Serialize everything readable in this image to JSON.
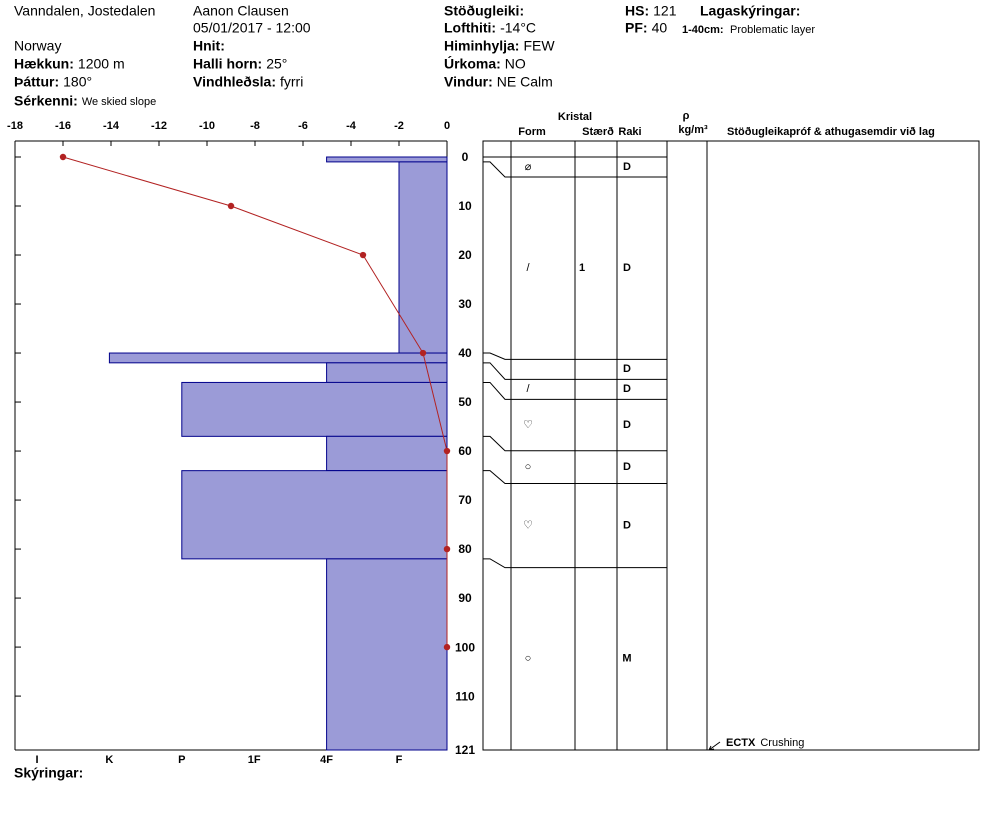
{
  "header": {
    "location": "Vanndalen, Jostedalen",
    "country": "Norway",
    "observer": "Aanon Clausen",
    "datetime": "05/01/2017 - 12:00",
    "fields": [
      {
        "label": "Hækkun:",
        "value": "1200 m"
      },
      {
        "label": "Þáttur:",
        "value": "180°"
      },
      {
        "label": "Sérkenni:",
        "value": "We skied slope"
      },
      {
        "label": "Hnit:"
      },
      {
        "label": "Halli horn:",
        "value": "25°"
      },
      {
        "label": "Vindhleðsla:",
        "value": "fyrri"
      },
      {
        "label": "Stöðugleiki:"
      },
      {
        "label": "Lofthiti:",
        "value": "-14°C"
      },
      {
        "label": "Himinhylja:",
        "value": "FEW"
      },
      {
        "label": "Úrkoma:",
        "value": "NO"
      },
      {
        "label": "Vindur:",
        "value": "NE Calm"
      },
      {
        "label": "HS:",
        "value": "121"
      },
      {
        "label": "PF:",
        "value": "40"
      }
    ],
    "legend_title": "Lagaskýringar:",
    "notes": [
      {
        "range": "1-40cm:",
        "text": "Problematic layer"
      }
    ],
    "footer": "Skýringar:"
  },
  "chart_data": {
    "type": "snow_profile",
    "temperature": {
      "depths": [
        0,
        10,
        20,
        40,
        60,
        80,
        100
      ],
      "values": [
        -16,
        -9,
        -3.5,
        -1,
        0,
        0,
        0
      ],
      "color": "#b22222"
    },
    "xlim": [
      -18,
      0
    ],
    "xticks": [
      -18,
      -16,
      -14,
      -12,
      -10,
      -8,
      -6,
      -4,
      -2,
      0
    ],
    "ylim": [
      0,
      121
    ],
    "yticks": [
      0,
      10,
      20,
      30,
      40,
      50,
      60,
      70,
      80,
      90,
      100,
      110,
      121
    ],
    "hardness_scale": [
      "I",
      "K",
      "P",
      "1F",
      "4F",
      "F"
    ],
    "hardness_color": "#9b9bd7",
    "columns": {
      "crystal": "Kristal",
      "form": "Form",
      "size": "Stærð",
      "moisture": "Raki",
      "density_symbol": "ρ",
      "density_unit": "kg/m³",
      "comments": "Stöðugleikapróf & athugasemdir við lag"
    },
    "layers": [
      {
        "top": 0,
        "bottom": 1,
        "hardness": "4F",
        "form": "⌀",
        "size": null,
        "moisture": "D"
      },
      {
        "top": 1,
        "bottom": 40,
        "hardness": "F",
        "form": "/",
        "size": "1",
        "moisture": "D"
      },
      {
        "top": 40,
        "bottom": 42,
        "hardness": "K",
        "form": null,
        "size": null,
        "moisture": "D"
      },
      {
        "top": 42,
        "bottom": 46,
        "hardness": "4F",
        "form": "/",
        "size": null,
        "moisture": "D"
      },
      {
        "top": 46,
        "bottom": 57,
        "hardness": "P",
        "form": "♡",
        "size": null,
        "moisture": "D"
      },
      {
        "top": 57,
        "bottom": 64,
        "hardness": "4F",
        "form": "○",
        "size": null,
        "moisture": "D"
      },
      {
        "top": 64,
        "bottom": 82,
        "hardness": "P",
        "form": "♡",
        "size": null,
        "moisture": "D"
      },
      {
        "top": 82,
        "bottom": 121,
        "hardness": "4F",
        "form": "○",
        "size": null,
        "moisture": "M"
      }
    ],
    "tests": [
      {
        "depth": 121,
        "test": "ECTX",
        "result": "Crushing"
      }
    ]
  }
}
